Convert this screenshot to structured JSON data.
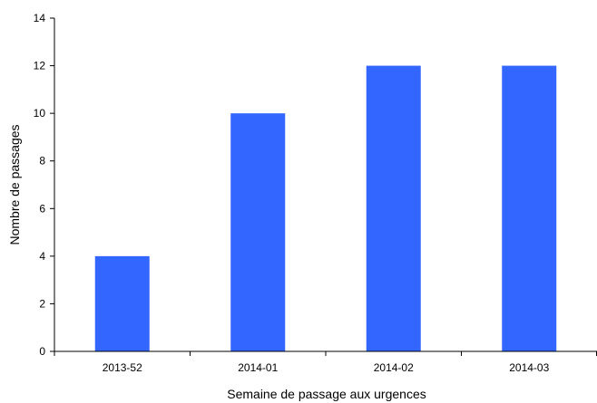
{
  "chart_data": {
    "type": "bar",
    "categories": [
      "2013-52",
      "2014-01",
      "2014-02",
      "2014-03"
    ],
    "values": [
      4,
      10,
      12,
      12
    ],
    "title": "",
    "xlabel": "Semaine de passage aux urgences",
    "ylabel": "Nombre de passages",
    "ylim": [
      0,
      14
    ],
    "yticks": [
      0,
      2,
      4,
      6,
      8,
      10,
      12,
      14
    ],
    "grid": false,
    "legend": "none",
    "bar_color": "#3366ff",
    "axis_color": "#000000"
  }
}
